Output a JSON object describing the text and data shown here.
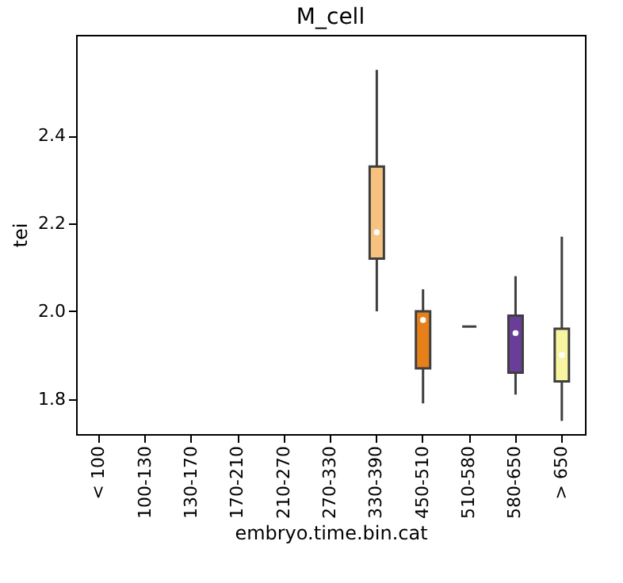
{
  "chart_data": {
    "type": "box",
    "title": "M_cell",
    "xlabel": "embryo.time.bin.cat",
    "ylabel": "tei",
    "categories": [
      "< 100",
      "100-130",
      "130-170",
      "170-210",
      "210-270",
      "270-330",
      "330-390",
      "450-510",
      "510-580",
      "580-650",
      "> 650"
    ],
    "colors": [
      null,
      null,
      null,
      null,
      null,
      null,
      "#f6c27e",
      "#e8801a",
      "#3f3f3f",
      "#6a3d9a",
      "#f8f5a0"
    ],
    "boxes": [
      null,
      null,
      null,
      null,
      null,
      null,
      {
        "low": 2.0,
        "q1": 2.12,
        "median": 2.18,
        "q3": 2.33,
        "high": 2.55
      },
      {
        "low": 1.79,
        "q1": 1.87,
        "median": 1.98,
        "q3": 2.0,
        "high": 2.05
      },
      {
        "low": 1.965,
        "q1": 1.965,
        "median": 1.965,
        "q3": 1.965,
        "high": 1.965
      },
      {
        "low": 1.81,
        "q1": 1.86,
        "median": 1.95,
        "q3": 1.99,
        "high": 2.08
      },
      {
        "low": 1.75,
        "q1": 1.84,
        "median": 1.9,
        "q3": 1.96,
        "high": 2.17
      }
    ],
    "ylim": [
      1.72,
      2.63
    ],
    "yticks": [
      1.8,
      {
        "value": 2.0,
        "label": "2.0"
      },
      2.2,
      2.4
    ],
    "grid": false
  }
}
